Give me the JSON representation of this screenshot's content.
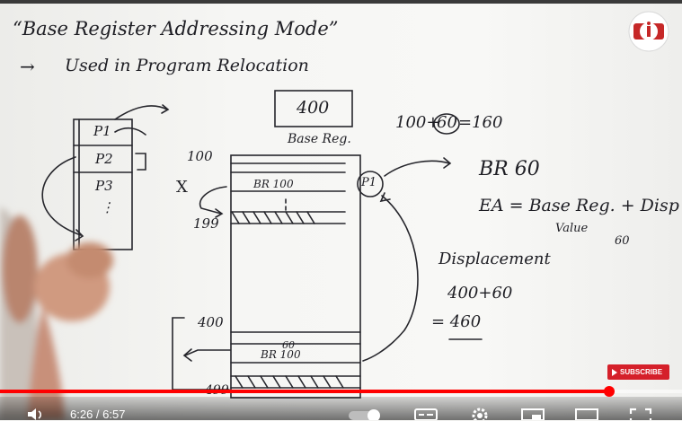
{
  "video": {
    "progress_fraction": 0.893,
    "current_time": "6:26",
    "duration": "6:57",
    "time_separator": " / ",
    "subscribe_label": "SUBSCRIBE",
    "accent_color": "#ff0000"
  },
  "board": {
    "title": "“Base Register Addressing Mode”",
    "arrow_bullet": "→",
    "subtitle": "Used in Program Relocation",
    "memory": {
      "top_value": "400",
      "base_reg_label": "Base Reg.",
      "addr_100": "100",
      "addr_199": "199",
      "addr_400": "400",
      "addr_499": "499",
      "instr_top": "BR 100",
      "instr_bottom": "BR 100",
      "bottom_disp": "60",
      "process_label": "P1"
    },
    "programs": [
      "P1",
      "P2",
      "P3"
    ],
    "cross_mark": "X",
    "sum_top": {
      "left": "100+",
      "circled": "60",
      "right": "=160"
    },
    "br_60": "BR 60",
    "ea_formula": "EA = Base Reg. + Disp",
    "value_label": "Value",
    "disp_value": "60",
    "displacement_heading": "Displacement",
    "calc_line1": "400+60",
    "calc_line2": "= 460"
  }
}
